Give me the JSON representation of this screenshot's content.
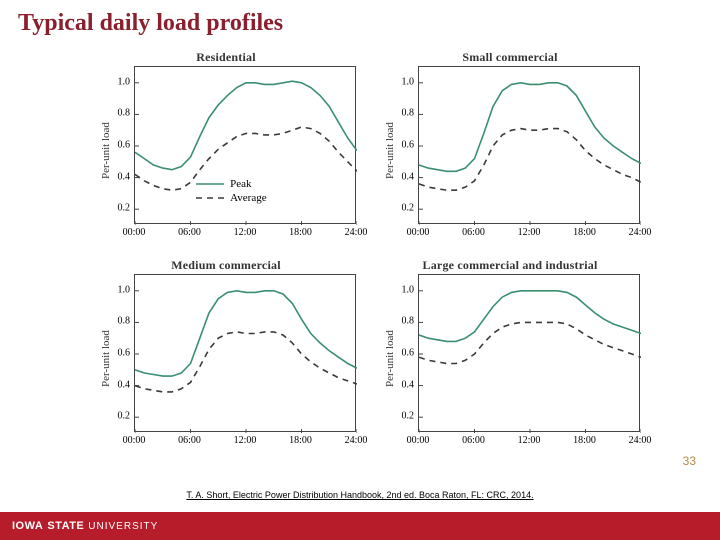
{
  "title": {
    "text": "Typical daily load profiles",
    "color": "#8a1f2d",
    "fontsize": 24
  },
  "page_number": "33",
  "page_number_color": "#b58a4a",
  "citation": "T. A. Short, Electric Power Distribution Handbook, 2nd ed. Boca Raton, FL: CRC, 2014.",
  "footer": {
    "bg_color": "#b71c2b",
    "text_color": "#ffffff",
    "iowa": "IOWA",
    "state": "STATE",
    "university": "UNIVERSITY"
  },
  "chart_style": {
    "line_color_peak": "#3a8f6e",
    "line_color_avg": "#3a3a3a",
    "peak_dash": "none",
    "avg_dash": "6,5",
    "line_width": 1.6,
    "axis_color": "#444444",
    "bg": "#ffffff",
    "title_fontsize": 12,
    "title_color": "#333333",
    "tick_fontsize": 10,
    "ylabel_fontsize": 11,
    "ylabel_color": "#333333"
  },
  "axes": {
    "ylabel": "Per-unit load",
    "xticks": [
      0,
      6,
      12,
      18,
      24
    ],
    "xtick_labels": [
      "00:00",
      "06:00",
      "12:00",
      "18:00",
      "24:00"
    ],
    "yticks": [
      0.2,
      0.4,
      0.6,
      0.8,
      1.0
    ],
    "ytick_labels": [
      "0.2",
      "0.4",
      "0.6",
      "0.8",
      "1.0"
    ],
    "xlim": [
      0,
      24
    ],
    "ylim": [
      0.1,
      1.1
    ]
  },
  "legend": {
    "show_in_panel": 0,
    "items": [
      {
        "label": "Peak",
        "stroke": "#3a8f6e",
        "dash": "none"
      },
      {
        "label": "Average",
        "stroke": "#3a3a3a",
        "dash": "6,5"
      }
    ],
    "fontsize": 11
  },
  "panels": [
    {
      "title": "Residential",
      "peak": [
        [
          0,
          0.56
        ],
        [
          1,
          0.52
        ],
        [
          2,
          0.48
        ],
        [
          3,
          0.46
        ],
        [
          4,
          0.45
        ],
        [
          5,
          0.47
        ],
        [
          6,
          0.53
        ],
        [
          7,
          0.66
        ],
        [
          8,
          0.78
        ],
        [
          9,
          0.86
        ],
        [
          10,
          0.92
        ],
        [
          11,
          0.97
        ],
        [
          12,
          1.0
        ],
        [
          13,
          1.0
        ],
        [
          14,
          0.99
        ],
        [
          15,
          0.99
        ],
        [
          16,
          1.0
        ],
        [
          17,
          1.01
        ],
        [
          18,
          1.0
        ],
        [
          19,
          0.97
        ],
        [
          20,
          0.92
        ],
        [
          21,
          0.85
        ],
        [
          22,
          0.75
        ],
        [
          23,
          0.65
        ],
        [
          24,
          0.57
        ]
      ],
      "avg": [
        [
          0,
          0.42
        ],
        [
          1,
          0.38
        ],
        [
          2,
          0.35
        ],
        [
          3,
          0.33
        ],
        [
          4,
          0.32
        ],
        [
          5,
          0.33
        ],
        [
          6,
          0.37
        ],
        [
          7,
          0.45
        ],
        [
          8,
          0.52
        ],
        [
          9,
          0.58
        ],
        [
          10,
          0.62
        ],
        [
          11,
          0.66
        ],
        [
          12,
          0.68
        ],
        [
          13,
          0.68
        ],
        [
          14,
          0.67
        ],
        [
          15,
          0.67
        ],
        [
          16,
          0.68
        ],
        [
          17,
          0.7
        ],
        [
          18,
          0.72
        ],
        [
          19,
          0.71
        ],
        [
          20,
          0.68
        ],
        [
          21,
          0.63
        ],
        [
          22,
          0.56
        ],
        [
          23,
          0.5
        ],
        [
          24,
          0.44
        ]
      ]
    },
    {
      "title": "Small commercial",
      "peak": [
        [
          0,
          0.48
        ],
        [
          1,
          0.46
        ],
        [
          2,
          0.45
        ],
        [
          3,
          0.44
        ],
        [
          4,
          0.44
        ],
        [
          5,
          0.46
        ],
        [
          6,
          0.52
        ],
        [
          7,
          0.68
        ],
        [
          8,
          0.85
        ],
        [
          9,
          0.95
        ],
        [
          10,
          0.99
        ],
        [
          11,
          1.0
        ],
        [
          12,
          0.99
        ],
        [
          13,
          0.99
        ],
        [
          14,
          1.0
        ],
        [
          15,
          1.0
        ],
        [
          16,
          0.98
        ],
        [
          17,
          0.92
        ],
        [
          18,
          0.82
        ],
        [
          19,
          0.72
        ],
        [
          20,
          0.65
        ],
        [
          21,
          0.6
        ],
        [
          22,
          0.56
        ],
        [
          23,
          0.52
        ],
        [
          24,
          0.49
        ]
      ],
      "avg": [
        [
          0,
          0.36
        ],
        [
          1,
          0.34
        ],
        [
          2,
          0.33
        ],
        [
          3,
          0.32
        ],
        [
          4,
          0.32
        ],
        [
          5,
          0.34
        ],
        [
          6,
          0.38
        ],
        [
          7,
          0.48
        ],
        [
          8,
          0.6
        ],
        [
          9,
          0.67
        ],
        [
          10,
          0.7
        ],
        [
          11,
          0.71
        ],
        [
          12,
          0.7
        ],
        [
          13,
          0.7
        ],
        [
          14,
          0.71
        ],
        [
          15,
          0.71
        ],
        [
          16,
          0.69
        ],
        [
          17,
          0.64
        ],
        [
          18,
          0.57
        ],
        [
          19,
          0.52
        ],
        [
          20,
          0.48
        ],
        [
          21,
          0.45
        ],
        [
          22,
          0.42
        ],
        [
          23,
          0.4
        ],
        [
          24,
          0.37
        ]
      ]
    },
    {
      "title": "Medium commercial",
      "peak": [
        [
          0,
          0.5
        ],
        [
          1,
          0.48
        ],
        [
          2,
          0.47
        ],
        [
          3,
          0.46
        ],
        [
          4,
          0.46
        ],
        [
          5,
          0.48
        ],
        [
          6,
          0.54
        ],
        [
          7,
          0.7
        ],
        [
          8,
          0.86
        ],
        [
          9,
          0.95
        ],
        [
          10,
          0.99
        ],
        [
          11,
          1.0
        ],
        [
          12,
          0.99
        ],
        [
          13,
          0.99
        ],
        [
          14,
          1.0
        ],
        [
          15,
          1.0
        ],
        [
          16,
          0.98
        ],
        [
          17,
          0.92
        ],
        [
          18,
          0.82
        ],
        [
          19,
          0.73
        ],
        [
          20,
          0.67
        ],
        [
          21,
          0.62
        ],
        [
          22,
          0.58
        ],
        [
          23,
          0.54
        ],
        [
          24,
          0.51
        ]
      ],
      "avg": [
        [
          0,
          0.4
        ],
        [
          1,
          0.38
        ],
        [
          2,
          0.37
        ],
        [
          3,
          0.36
        ],
        [
          4,
          0.36
        ],
        [
          5,
          0.38
        ],
        [
          6,
          0.42
        ],
        [
          7,
          0.52
        ],
        [
          8,
          0.63
        ],
        [
          9,
          0.7
        ],
        [
          10,
          0.73
        ],
        [
          11,
          0.74
        ],
        [
          12,
          0.73
        ],
        [
          13,
          0.73
        ],
        [
          14,
          0.74
        ],
        [
          15,
          0.74
        ],
        [
          16,
          0.72
        ],
        [
          17,
          0.67
        ],
        [
          18,
          0.6
        ],
        [
          19,
          0.55
        ],
        [
          20,
          0.51
        ],
        [
          21,
          0.48
        ],
        [
          22,
          0.45
        ],
        [
          23,
          0.43
        ],
        [
          24,
          0.41
        ]
      ]
    },
    {
      "title": "Large commercial and industrial",
      "peak": [
        [
          0,
          0.72
        ],
        [
          1,
          0.7
        ],
        [
          2,
          0.69
        ],
        [
          3,
          0.68
        ],
        [
          4,
          0.68
        ],
        [
          5,
          0.7
        ],
        [
          6,
          0.74
        ],
        [
          7,
          0.82
        ],
        [
          8,
          0.9
        ],
        [
          9,
          0.96
        ],
        [
          10,
          0.99
        ],
        [
          11,
          1.0
        ],
        [
          12,
          1.0
        ],
        [
          13,
          1.0
        ],
        [
          14,
          1.0
        ],
        [
          15,
          1.0
        ],
        [
          16,
          0.99
        ],
        [
          17,
          0.96
        ],
        [
          18,
          0.91
        ],
        [
          19,
          0.86
        ],
        [
          20,
          0.82
        ],
        [
          21,
          0.79
        ],
        [
          22,
          0.77
        ],
        [
          23,
          0.75
        ],
        [
          24,
          0.73
        ]
      ],
      "avg": [
        [
          0,
          0.58
        ],
        [
          1,
          0.56
        ],
        [
          2,
          0.55
        ],
        [
          3,
          0.54
        ],
        [
          4,
          0.54
        ],
        [
          5,
          0.56
        ],
        [
          6,
          0.6
        ],
        [
          7,
          0.67
        ],
        [
          8,
          0.73
        ],
        [
          9,
          0.77
        ],
        [
          10,
          0.79
        ],
        [
          11,
          0.8
        ],
        [
          12,
          0.8
        ],
        [
          13,
          0.8
        ],
        [
          14,
          0.8
        ],
        [
          15,
          0.8
        ],
        [
          16,
          0.79
        ],
        [
          17,
          0.76
        ],
        [
          18,
          0.72
        ],
        [
          19,
          0.69
        ],
        [
          20,
          0.66
        ],
        [
          21,
          0.64
        ],
        [
          22,
          0.62
        ],
        [
          23,
          0.6
        ],
        [
          24,
          0.58
        ]
      ]
    }
  ]
}
